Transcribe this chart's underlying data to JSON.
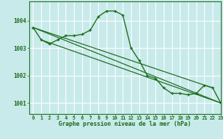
{
  "background_color": "#c8eaea",
  "grid_color": "#b0d8d8",
  "line_color": "#1a6b1a",
  "xlim": [
    -0.5,
    23
  ],
  "ylim": [
    1000.6,
    1004.7
  ],
  "yticks": [
    1001,
    1002,
    1003,
    1004
  ],
  "xticks": [
    0,
    1,
    2,
    3,
    4,
    5,
    6,
    7,
    8,
    9,
    10,
    11,
    12,
    13,
    14,
    15,
    16,
    17,
    18,
    19,
    20,
    21,
    22,
    23
  ],
  "series1": [
    1003.75,
    1003.3,
    1003.15,
    1003.3,
    1003.45,
    1003.45,
    1003.5,
    1003.65,
    1004.15,
    1004.35,
    1004.35,
    1004.2,
    1003.0,
    1002.55,
    1002.0,
    1001.9,
    1001.55,
    1001.35,
    1001.35,
    1001.3,
    1001.35,
    1001.65,
    1001.55,
    1001.0
  ],
  "line1_x": [
    0,
    23
  ],
  "line1_y": [
    1003.75,
    1001.0
  ],
  "line2_x": [
    0,
    22
  ],
  "line2_y": [
    1003.75,
    1001.55
  ],
  "line3_x": [
    1,
    23
  ],
  "line3_y": [
    1003.3,
    1001.0
  ],
  "xlabel": "Graphe pression niveau de la mer (hPa)"
}
